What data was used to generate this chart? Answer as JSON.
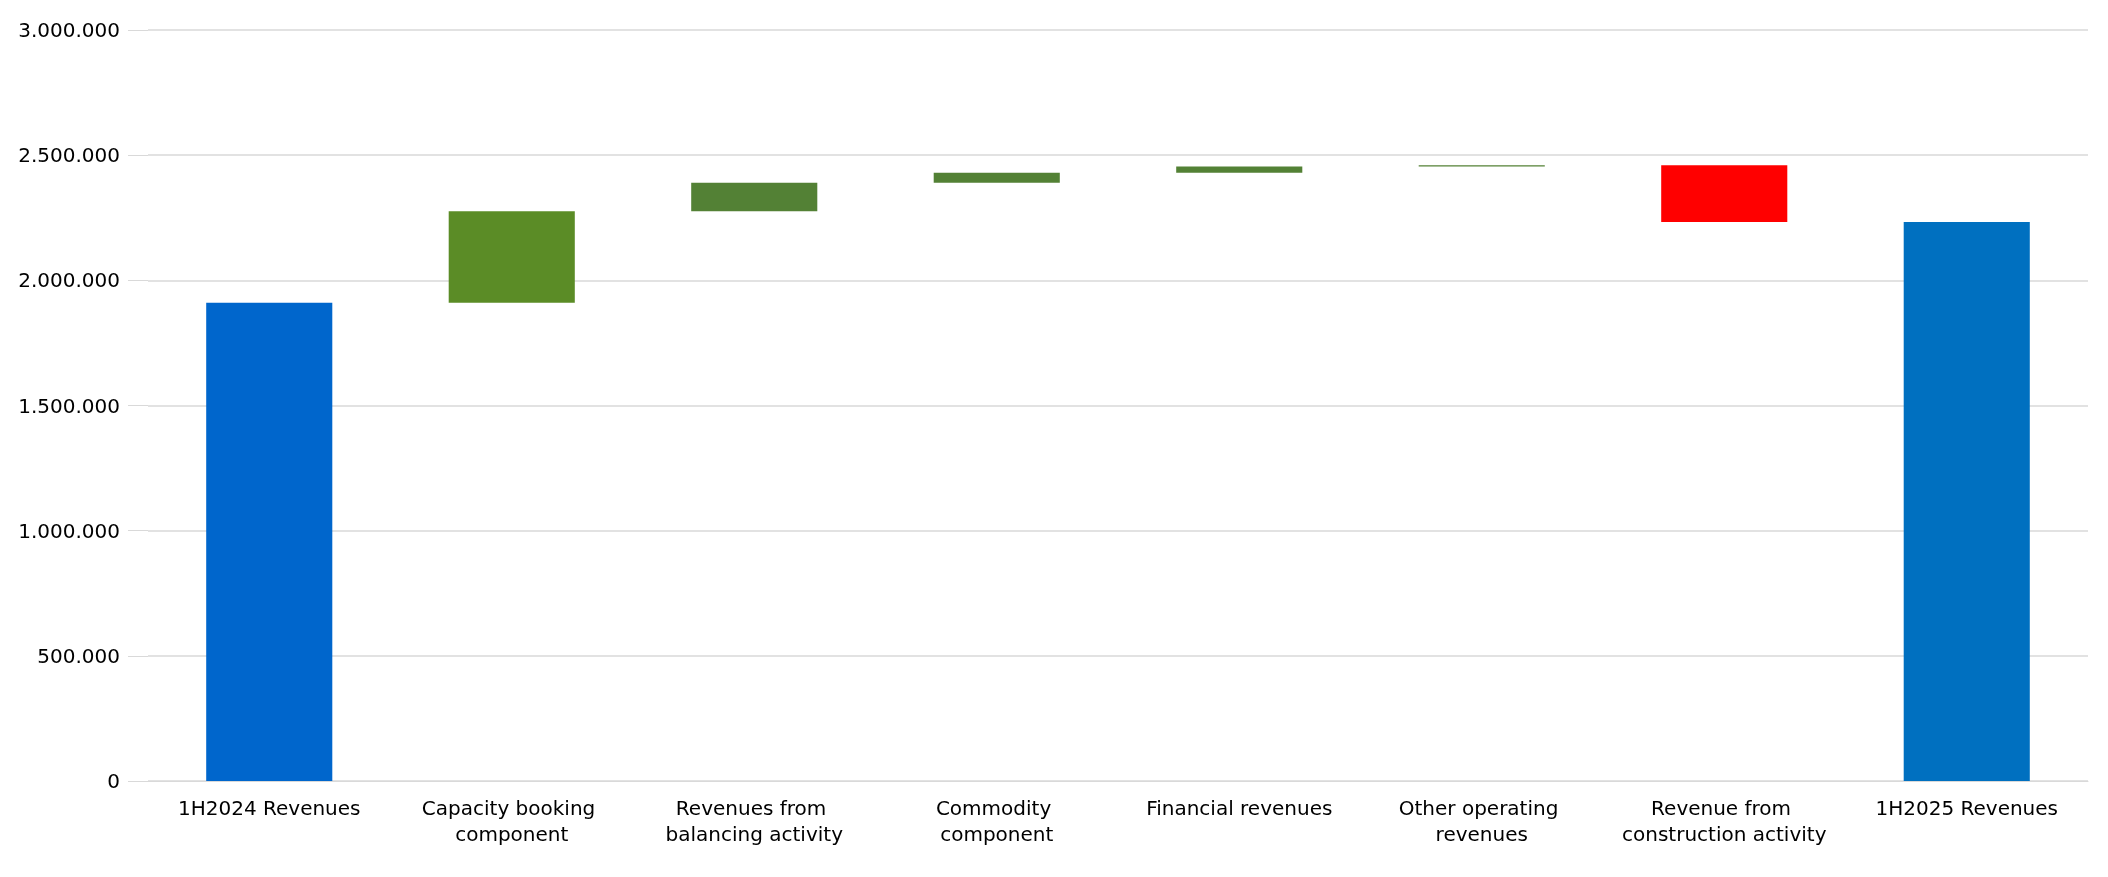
{
  "chart_data": {
    "type": "bar",
    "categories": [
      "1H2024 Revenues",
      "Capacity booking component",
      "Revenues from balancing activity",
      "Commodity component",
      "Financial revenues",
      "Other operating revenues",
      "Revenue from construction activity",
      "1H2025 Revenues"
    ],
    "values": [
      1910000,
      366000,
      114000,
      40000,
      25000,
      5000,
      -227000,
      2233000
    ],
    "base": [
      0,
      1910000,
      2276000,
      2390000,
      2430000,
      2455000,
      2460000,
      0
    ],
    "colors": [
      "#0066cc",
      "#5b8c26",
      "#538135",
      "#538135",
      "#538135",
      "#538135",
      "#ff0000",
      "#0070c0"
    ],
    "ylim": [
      0,
      3000000
    ],
    "yticks": [
      {
        "value": 0,
        "label": "0"
      },
      {
        "value": 500000,
        "label": "500.000"
      },
      {
        "value": 1000000,
        "label": "1.000.000"
      },
      {
        "value": 1500000,
        "label": "1.500.000"
      },
      {
        "value": 2000000,
        "label": "2.000.000"
      },
      {
        "value": 2500000,
        "label": "2.500.000"
      },
      {
        "value": 3000000,
        "label": "3.000.000"
      }
    ],
    "grid": "y"
  }
}
